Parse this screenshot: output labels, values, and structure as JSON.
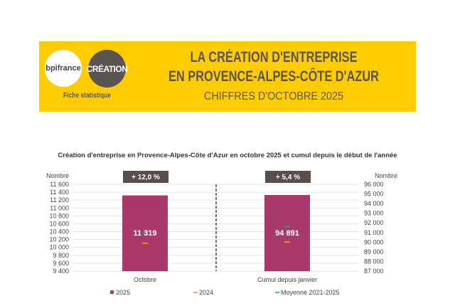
{
  "header": {
    "logo_bpi": "bpifrance",
    "logo_creation": "CRÉATION",
    "subtitle": "Fiche statistique",
    "title_line1": "LA CRÉATION D'ENTREPRISE",
    "title_line2": "EN PROVENCE-ALPES-CÔTE D'AZUR",
    "period": "CHIFFRES D'OCTOBRE 2025"
  },
  "colors": {
    "banner": "#FFCC00",
    "bar": "#A8396A",
    "y2024": "#F39200",
    "avg": "#1E9E7E",
    "badge": "#5a4e4b"
  },
  "chart_data": {
    "type": "bar",
    "title": "Création d'entreprise en Provence-Alpes-Côte d'Azur en octobre 2025 et cumul depuis le début de l'année",
    "ylabel_left": "Nombre",
    "ylabel_right": "Nombre",
    "ylim_left": [
      9400,
      11600
    ],
    "yticks_left": [
      "9 400",
      "9 600",
      "9 800",
      "10 000",
      "10 200",
      "10 400",
      "10 600",
      "10 800",
      "11 000",
      "11 200",
      "11 400",
      "11 600"
    ],
    "ylim_right": [
      87000,
      96000
    ],
    "yticks_right": [
      "87 000",
      "88 000",
      "89 000",
      "90 000",
      "91 000",
      "92 000",
      "93 000",
      "94 000",
      "95 000",
      "96 000"
    ],
    "categories": [
      "Octobre",
      "Cumul depuis janvier"
    ],
    "series": [
      {
        "name": "2025",
        "values": [
          11319,
          94891
        ]
      },
      {
        "name": "2024",
        "values": [
          10106,
          90030
        ]
      },
      {
        "name": "Moyenne 2021-2025",
        "values": [
          10380,
          91600
        ]
      }
    ],
    "value_labels": [
      "11 319",
      "94 891"
    ],
    "badges": [
      "+ 12,0 %",
      "+ 5,4 %"
    ],
    "legend_position": "bottom"
  }
}
